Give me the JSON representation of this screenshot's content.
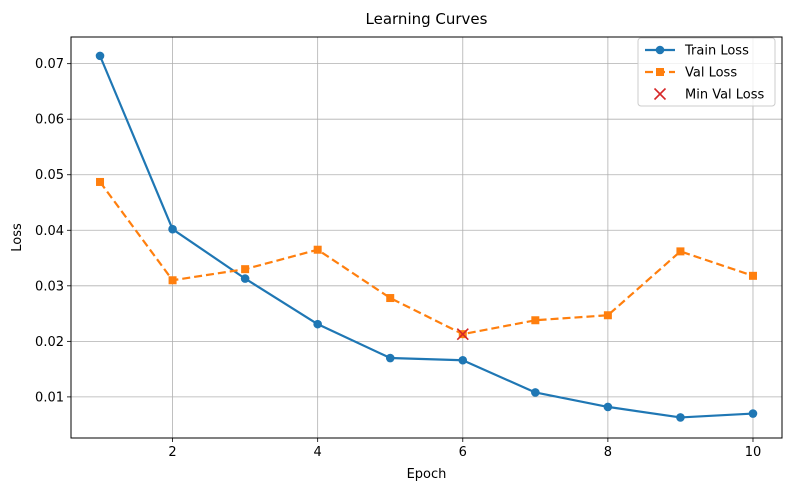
{
  "chart_data": {
    "type": "line",
    "title": "Learning Curves",
    "xlabel": "Epoch",
    "ylabel": "Loss",
    "xlim": [
      0.6,
      10.4
    ],
    "ylim": [
      0.0026,
      0.0748
    ],
    "xticks": [
      2,
      4,
      6,
      8,
      10
    ],
    "yticks": [
      0.01,
      0.02,
      0.03,
      0.04,
      0.05,
      0.06,
      0.07
    ],
    "xtick_labels": [
      "2",
      "4",
      "6",
      "8",
      "10"
    ],
    "ytick_labels": [
      "0.01",
      "0.02",
      "0.03",
      "0.04",
      "0.05",
      "0.06",
      "0.07"
    ],
    "grid": true,
    "legend_position": "top-right",
    "x": [
      1,
      2,
      3,
      4,
      5,
      6,
      7,
      8,
      9,
      10
    ],
    "series": [
      {
        "name": "Train Loss",
        "values": [
          0.0714,
          0.0402,
          0.0313,
          0.0231,
          0.017,
          0.0166,
          0.0108,
          0.0082,
          0.0063,
          0.007
        ],
        "color": "#1f77b4",
        "line_style": "solid",
        "marker": "circle"
      },
      {
        "name": "Val Loss",
        "values": [
          0.0487,
          0.031,
          0.033,
          0.0365,
          0.0278,
          0.0213,
          0.0238,
          0.0247,
          0.0362,
          0.0318
        ],
        "color": "#ff7f0e",
        "line_style": "dashed",
        "marker": "square"
      }
    ],
    "highlight": {
      "name": "Min Val Loss",
      "x": 6,
      "y": 0.0213,
      "color": "#d62728",
      "marker": "x"
    }
  }
}
